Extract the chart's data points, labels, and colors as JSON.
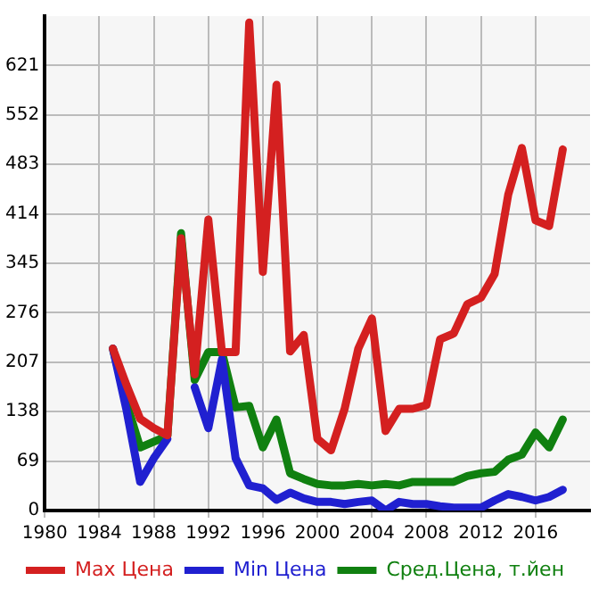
{
  "chart_data": {
    "type": "line",
    "x": [
      1985,
      1986,
      1987,
      1988,
      1989,
      1990,
      1991,
      1992,
      1993,
      1994,
      1995,
      1996,
      1997,
      1998,
      1999,
      2000,
      2001,
      2002,
      2003,
      2004,
      2005,
      2006,
      2007,
      2008,
      2009,
      2010,
      2011,
      2012,
      2013,
      2014,
      2015,
      2016,
      2017,
      2018
    ],
    "series": [
      {
        "name": "Max Цена",
        "color": "#d42020",
        "values": [
          226,
          175,
          128,
          115,
          105,
          380,
          190,
          406,
          221,
          221,
          681,
          333,
          594,
          222,
          245,
          100,
          84,
          142,
          226,
          268,
          111,
          142,
          142,
          147,
          239,
          247,
          288,
          297,
          330,
          441,
          506,
          405,
          397,
          504
        ]
      },
      {
        "name": "Min Цена",
        "color": "#2020d0",
        "values": [
          226,
          140,
          40,
          73,
          100,
          null,
          172,
          115,
          211,
          73,
          35,
          31,
          15,
          25,
          17,
          12,
          12,
          9,
          12,
          14,
          0,
          12,
          9,
          9,
          6,
          4,
          4,
          4,
          14,
          23,
          19,
          14,
          19,
          29
        ]
      },
      {
        "name": "Сред.Цена, т.йен",
        "color": "#108010",
        "values": [
          226,
          150,
          88,
          96,
          104,
          387,
          182,
          221,
          221,
          144,
          146,
          88,
          127,
          52,
          44,
          37,
          35,
          35,
          37,
          35,
          37,
          35,
          40,
          40,
          40,
          40,
          48,
          52,
          54,
          71,
          78,
          109,
          88,
          127
        ]
      }
    ],
    "xlim": [
      1980,
      2020
    ],
    "xticks": [
      1980,
      1984,
      1988,
      1992,
      1996,
      2000,
      2004,
      2008,
      2012,
      2016
    ],
    "ylim": [
      0,
      690
    ],
    "yticks": [
      0,
      69,
      138,
      207,
      276,
      345,
      414,
      483,
      552,
      621
    ],
    "grid": true,
    "legend": "bottom",
    "marker": "none",
    "line_style": "solid"
  }
}
